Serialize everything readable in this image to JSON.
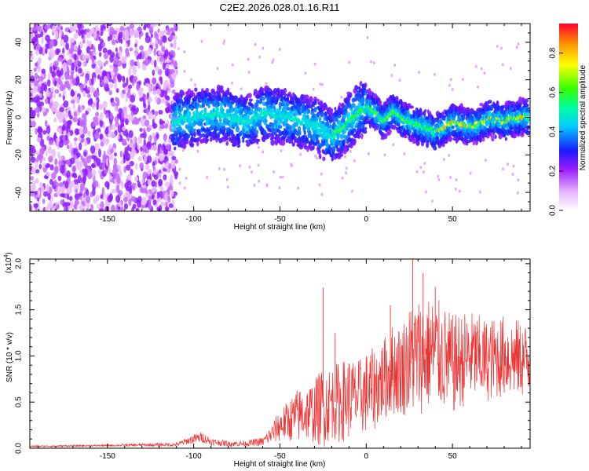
{
  "title": "C2E2.2026.028.01.16.R11",
  "chart_data": [
    {
      "type": "heatmap",
      "xlabel": "Height of straight line (km)",
      "ylabel": "Frequency (Hz)",
      "xlim": [
        -195,
        95
      ],
      "ylim": [
        -50,
        50
      ],
      "x_ticks": [
        -150,
        -100,
        -50,
        0,
        50
      ],
      "x_tick_labels": [
        "-150",
        "-100",
        "-50",
        "0",
        "50"
      ],
      "y_ticks": [
        40,
        20,
        0,
        -20,
        -40
      ],
      "y_tick_labels": [
        "40",
        "20",
        "0",
        "-20",
        "-40"
      ],
      "colorbar": {
        "label": "Normalized spectral amplitude",
        "range": [
          0,
          0.95
        ],
        "ticks": [
          0.0,
          0.2,
          0.4,
          0.6,
          0.8
        ],
        "tick_labels": [
          "0.0",
          "0.2",
          "0.4",
          "0.6",
          "0.8"
        ]
      },
      "center_frequency_trace": {
        "x": [
          -110,
          -100,
          -90,
          -80,
          -70,
          -60,
          -50,
          -40,
          -30,
          -25,
          -20,
          -15,
          -10,
          -5,
          0,
          5,
          10,
          15,
          20,
          30,
          40,
          50,
          60,
          70,
          80,
          90
        ],
        "y": [
          -2,
          0,
          2,
          1,
          -2,
          2,
          1,
          -1,
          -4,
          -7,
          -10,
          -7,
          -2,
          2,
          5,
          3,
          -2,
          3,
          0,
          -4,
          -8,
          -2,
          -5,
          -1,
          -2,
          0
        ]
      }
    },
    {
      "type": "line",
      "xlabel": "Height of straight line (km)",
      "ylabel": "SNR (10 * v/v)",
      "y_multiplier_label": "(x10",
      "y_multiplier_exp": "4",
      "y_multiplier_close": ")",
      "xlim": [
        -195,
        95
      ],
      "ylim": [
        0,
        2.05
      ],
      "x_ticks": [
        -150,
        -100,
        -50,
        0,
        50
      ],
      "x_tick_labels": [
        "-150",
        "-100",
        "-50",
        "0",
        "50"
      ],
      "y_ticks": [
        0.0,
        0.5,
        1.0,
        1.5,
        2.0
      ],
      "y_tick_labels": [
        "0.0",
        "0.5",
        "1.0",
        "1.5",
        "2.0"
      ],
      "series": [
        {
          "name": "SNR",
          "color": "#ee3333",
          "envelope_x": [
            -195,
            -150,
            -110,
            -100,
            -95,
            -90,
            -80,
            -70,
            -60,
            -55,
            -50,
            -45,
            -40,
            -35,
            -30,
            -25,
            -20,
            -15,
            -10,
            -5,
            0,
            5,
            10,
            15,
            20,
            25,
            30,
            40,
            50,
            60,
            70,
            80,
            95
          ],
          "envelope_mean": [
            0.02,
            0.03,
            0.04,
            0.1,
            0.12,
            0.07,
            0.05,
            0.05,
            0.07,
            0.15,
            0.25,
            0.3,
            0.35,
            0.38,
            0.4,
            0.45,
            0.5,
            0.5,
            0.55,
            0.55,
            0.6,
            0.65,
            0.75,
            0.85,
            0.85,
            0.95,
            1.0,
            1.05,
            0.9,
            1.0,
            0.95,
            1.0,
            0.95
          ],
          "envelope_amp": [
            0.01,
            0.01,
            0.02,
            0.05,
            0.06,
            0.04,
            0.03,
            0.03,
            0.05,
            0.1,
            0.18,
            0.22,
            0.3,
            0.3,
            0.35,
            0.45,
            0.4,
            0.45,
            0.45,
            0.4,
            0.45,
            0.45,
            0.45,
            0.5,
            0.5,
            0.6,
            0.65,
            0.6,
            0.55,
            0.5,
            0.45,
            0.45,
            0.4
          ],
          "spikes": [
            {
              "x": -25,
              "y": 1.74
            },
            {
              "x": -18,
              "y": 1.25
            },
            {
              "x": 27,
              "y": 2.05
            },
            {
              "x": 33,
              "y": 1.9
            },
            {
              "x": 40,
              "y": 1.75
            },
            {
              "x": 14,
              "y": 1.55
            }
          ]
        }
      ]
    }
  ]
}
